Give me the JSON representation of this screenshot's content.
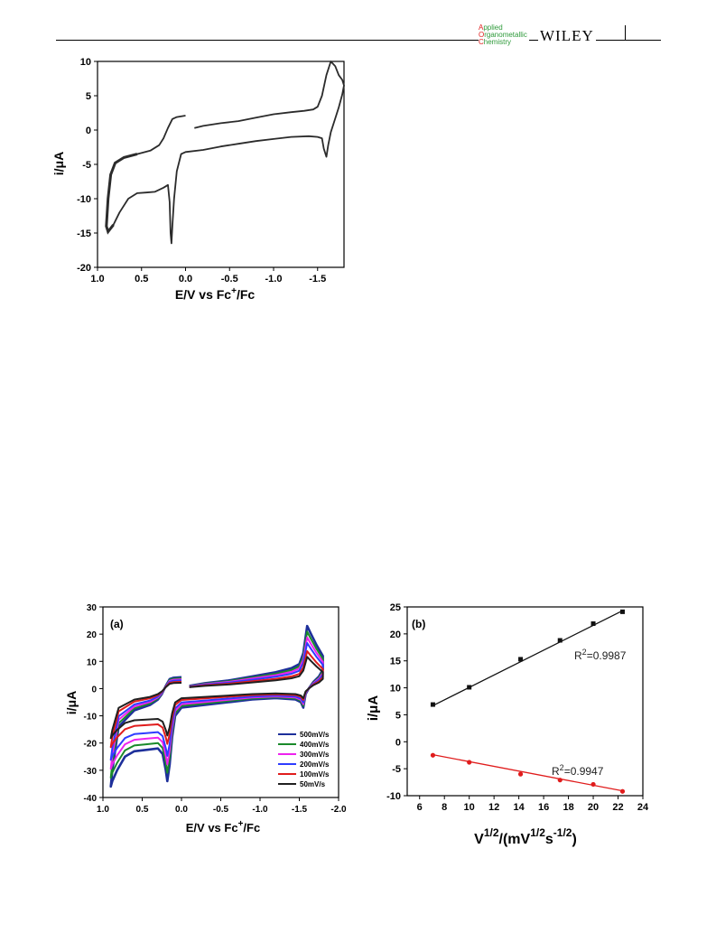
{
  "header": {
    "journal_logo_caps": [
      "A",
      "O",
      "C"
    ],
    "journal_logo_rest": [
      "pplied",
      "rganometallic",
      "hemistry"
    ],
    "publisher": "WILEY"
  },
  "chart_data": [
    {
      "type": "line",
      "xlabel": "E/V vs Fc",
      "xlabel_superscript": "+",
      "xlabel_suffix": "/Fc",
      "ylabel": "i/μA",
      "xlim": [
        1.0,
        -1.8
      ],
      "ylim": [
        -20,
        10
      ],
      "xticks": [
        1.0,
        0.5,
        0.0,
        -0.5,
        -1.0,
        -1.5
      ],
      "xticklabels": [
        "1.0",
        "0.5",
        "0.0",
        "-0.5",
        "-1.0",
        "-1.5"
      ],
      "yticks": [
        10,
        5,
        0,
        -5,
        -10,
        -15,
        -20
      ],
      "series": [
        {
          "color": "#2b2b2b",
          "segments": [
            {
              "x": [
                -0.1,
                -0.2,
                -0.4,
                -0.6,
                -0.8,
                -1.0,
                -1.2,
                -1.35,
                -1.45,
                -1.5,
                -1.55,
                -1.6,
                -1.65,
                -1.7,
                -1.74,
                -1.78,
                -1.8,
                -1.78,
                -1.74,
                -1.7,
                -1.65,
                -1.62,
                -1.6,
                -1.57,
                -1.55,
                -1.5,
                -1.4,
                -1.2,
                -1.0,
                -0.8,
                -0.6,
                -0.4,
                -0.2,
                0.0,
                0.05,
                0.1,
                0.13,
                0.15,
                0.16,
                0.17,
                0.18,
                0.2,
                0.25,
                0.35,
                0.45,
                0.55,
                0.65,
                0.75,
                0.82,
                0.88,
                0.9,
                0.88,
                0.85,
                0.8,
                0.7,
                0.55,
                0.4,
                0.3,
                0.25,
                0.2,
                0.15,
                0.1,
                0.0
              ],
              "y": [
                0.3,
                0.6,
                1.0,
                1.3,
                1.8,
                2.3,
                2.6,
                2.8,
                3.0,
                3.4,
                5.0,
                8.0,
                10.0,
                9.3,
                8.0,
                7.3,
                6.5,
                5.2,
                3.3,
                1.7,
                -0.3,
                -2.2,
                -3.9,
                -2.7,
                -1.2,
                -1.0,
                -0.9,
                -1.0,
                -1.3,
                -1.6,
                -2.0,
                -2.4,
                -2.9,
                -3.2,
                -3.5,
                -6.0,
                -10.0,
                -14.0,
                -16.5,
                -15.0,
                -10.5,
                -8.0,
                -8.4,
                -9.0,
                -9.1,
                -9.2,
                -10.0,
                -12.0,
                -13.8,
                -14.8,
                -14.0,
                -10.0,
                -6.5,
                -4.8,
                -4.0,
                -3.5,
                -3.0,
                -2.2,
                -1.2,
                0.3,
                1.6,
                1.9,
                2.1
              ],
              "thick_indices": [
                48,
                49,
                50,
                51,
                52,
                53,
                54,
                55
              ]
            }
          ]
        }
      ]
    },
    {
      "type": "line",
      "panel_label": "(a)",
      "xlabel": "E/V vs Fc",
      "xlabel_superscript": "+",
      "xlabel_suffix": "/Fc",
      "ylabel": "i/μA",
      "xlim": [
        1.0,
        -2.0
      ],
      "ylim": [
        -40,
        30
      ],
      "xticks": [
        1.0,
        0.5,
        0.0,
        -0.5,
        -1.0,
        -1.5,
        -2.0
      ],
      "xticklabels": [
        "1.0",
        "0.5",
        "0.0",
        "-0.5",
        "-1.0",
        "-1.5",
        "-2.0"
      ],
      "yticks": [
        30,
        20,
        10,
        0,
        -10,
        -20,
        -30,
        -40
      ],
      "legend_position": "lower-right",
      "series": [
        {
          "name": "500mV/s",
          "color": "#1d2f9a",
          "scale": 1.0
        },
        {
          "name": "400mV/s",
          "color": "#1a8a2a",
          "scale": 0.86
        },
        {
          "name": "300mV/s",
          "color": "#ee22ee",
          "scale": 0.72
        },
        {
          "name": "200mV/s",
          "color": "#2f3cff",
          "scale": 0.58
        },
        {
          "name": "100mV/s",
          "color": "#e01c1c",
          "scale": 0.38
        },
        {
          "name": "50mV/s",
          "color": "#202020",
          "scale": 0.24
        }
      ],
      "base_curve": {
        "x": [
          -0.1,
          -0.3,
          -0.6,
          -0.9,
          -1.2,
          -1.4,
          -1.5,
          -1.55,
          -1.6,
          -1.65,
          -1.72,
          -1.8,
          -1.8,
          -1.75,
          -1.68,
          -1.62,
          -1.58,
          -1.55,
          -1.52,
          -1.45,
          -1.2,
          -0.9,
          -0.6,
          -0.3,
          0.0,
          0.08,
          0.12,
          0.15,
          0.18,
          0.2,
          0.24,
          0.3,
          0.45,
          0.6,
          0.72,
          0.82,
          0.88,
          0.9,
          0.88,
          0.8,
          0.6,
          0.4,
          0.3,
          0.25,
          0.2,
          0.15,
          0.1,
          0.0
        ],
        "y": [
          1.0,
          2.0,
          3.0,
          4.5,
          6.0,
          7.5,
          9.0,
          13.0,
          23.0,
          20.0,
          16.0,
          12.0,
          7.0,
          4.5,
          2.5,
          0.0,
          -2.0,
          -7.0,
          -5.0,
          -4.0,
          -3.5,
          -4.0,
          -5.0,
          -6.0,
          -7.0,
          -10.0,
          -18.0,
          -28.0,
          -34.0,
          -30.0,
          -24.0,
          -22.0,
          -22.5,
          -23.0,
          -25.0,
          -30.0,
          -34.0,
          -36.0,
          -30.0,
          -14.0,
          -8.0,
          -6.0,
          -4.0,
          -2.0,
          1.0,
          3.5,
          4.0,
          4.2
        ]
      }
    },
    {
      "type": "scatter",
      "panel_label": "(b)",
      "xlabel": "V",
      "xlabel_sup1": "1/2",
      "xlabel_mid": "/(mV",
      "xlabel_sup2": "1/2",
      "xlabel_mid2": "s",
      "xlabel_sup3": "-1/2",
      "xlabel_end": ")",
      "ylabel": "i/μA",
      "xlim": [
        5,
        24
      ],
      "ylim": [
        -10,
        25
      ],
      "xticks": [
        6,
        8,
        10,
        12,
        14,
        16,
        18,
        20,
        22,
        24
      ],
      "yticks": [
        25,
        20,
        15,
        10,
        5,
        0,
        -5,
        -10
      ],
      "series": [
        {
          "color": "#111111",
          "marker": "square",
          "x": [
            7.07,
            10.0,
            14.14,
            17.32,
            20.0,
            22.36
          ],
          "y": [
            6.9,
            10.1,
            15.3,
            18.8,
            21.9,
            24.1
          ],
          "fit": [
            [
              7.07,
              6.7
            ],
            [
              22.36,
              24.3
            ]
          ],
          "r2_label": "R",
          "r2_sup": "2",
          "r2_value": "=0.9987"
        },
        {
          "color": "#e01c1c",
          "marker": "circle",
          "x": [
            7.07,
            10.0,
            14.14,
            17.32,
            20.0,
            22.36
          ],
          "y": [
            -2.5,
            -3.8,
            -6.0,
            -7.1,
            -7.9,
            -9.2
          ],
          "fit": [
            [
              7.07,
              -2.4
            ],
            [
              22.36,
              -9.1
            ]
          ],
          "r2_label": "R",
          "r2_sup": "2",
          "r2_value": "=0.9947"
        }
      ]
    }
  ]
}
